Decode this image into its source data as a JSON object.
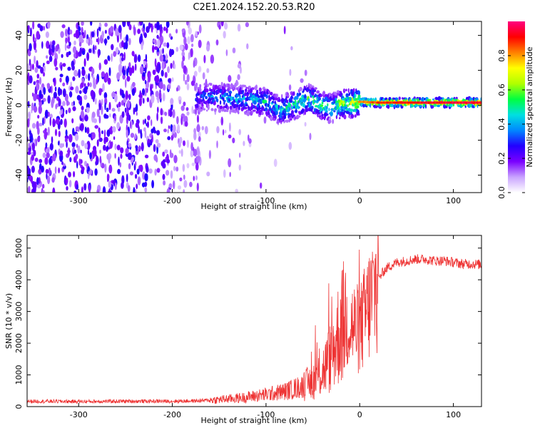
{
  "title": "C2E1.2024.152.20.53.R20",
  "chart_data": [
    {
      "type": "heatmap",
      "xlabel": "Height of straight line (km)",
      "ylabel": "Frequency (Hz)",
      "xlim": [
        -355,
        130
      ],
      "ylim": [
        -50,
        48
      ],
      "xticks": [
        -300,
        -200,
        -100,
        0,
        100
      ],
      "xtick_labels": [
        "-300",
        "-200",
        "-100",
        "0",
        "100"
      ],
      "yticks": [
        -40,
        -20,
        0,
        20,
        40
      ],
      "ytick_labels": [
        "-40",
        "-20",
        "0",
        "20",
        "40"
      ],
      "colorbar": {
        "label": "Normalized spectral amplitude",
        "range": [
          0,
          1
        ],
        "ticks": [
          0.0,
          0.2,
          0.4,
          0.6,
          0.8
        ],
        "tick_labels": [
          "0.0",
          "0.2",
          "0.4",
          "0.6",
          "0.8"
        ],
        "colors": [
          "#ffffff",
          "#c9a3ff",
          "#7a00ff",
          "#2200ff",
          "#0088ff",
          "#00e0e0",
          "#00ff40",
          "#b0ff00",
          "#ffff00",
          "#ff8000",
          "#ff0000",
          "#ff0080"
        ]
      },
      "signal_track": [
        {
          "x": -175,
          "freq": 4,
          "amp": 0.35
        },
        {
          "x": -160,
          "freq": 5,
          "amp": 0.4
        },
        {
          "x": -140,
          "freq": 4,
          "amp": 0.45
        },
        {
          "x": -120,
          "freq": 3,
          "amp": 0.45
        },
        {
          "x": -100,
          "freq": 2,
          "amp": 0.5
        },
        {
          "x": -85,
          "freq": -3,
          "amp": 0.5
        },
        {
          "x": -70,
          "freq": 0,
          "amp": 0.55
        },
        {
          "x": -55,
          "freq": 4,
          "amp": 0.6
        },
        {
          "x": -40,
          "freq": 0,
          "amp": 0.6
        },
        {
          "x": -30,
          "freq": -2,
          "amp": 0.55
        },
        {
          "x": -20,
          "freq": 1,
          "amp": 0.7
        },
        {
          "x": -10,
          "freq": 1,
          "amp": 0.75
        },
        {
          "x": 0,
          "freq": 2,
          "amp": 0.85
        },
        {
          "x": 20,
          "freq": 1.5,
          "amp": 0.9
        },
        {
          "x": 50,
          "freq": 1.5,
          "amp": 0.95
        },
        {
          "x": 80,
          "freq": 1.5,
          "amp": 0.97
        },
        {
          "x": 110,
          "freq": 1.5,
          "amp": 0.98
        },
        {
          "x": 130,
          "freq": 1.5,
          "amp": 0.98
        }
      ]
    },
    {
      "type": "line",
      "xlabel": "Height of straight line (km)",
      "ylabel": "SNR (10 * v/v)",
      "xlim": [
        -355,
        130
      ],
      "ylim": [
        0,
        5400
      ],
      "xticks": [
        -300,
        -200,
        -100,
        0,
        100
      ],
      "xtick_labels": [
        "-300",
        "-200",
        "-100",
        "0",
        "100"
      ],
      "yticks": [
        0,
        1000,
        2000,
        3000,
        4000,
        5000
      ],
      "ytick_labels": [
        "0",
        "1000",
        "2000",
        "3000",
        "4000",
        "5000"
      ],
      "line_color": "#ee3333",
      "series": [
        {
          "name": "SNR",
          "x": [
            -355,
            -300,
            -250,
            -200,
            -175,
            -150,
            -125,
            -100,
            -80,
            -60,
            -50,
            -40,
            -30,
            -25,
            -20,
            -15,
            -10,
            -5,
            0,
            5,
            10,
            15,
            20,
            25,
            30,
            40,
            50,
            60,
            70,
            80,
            90,
            100,
            110,
            120,
            130
          ],
          "values": [
            170,
            160,
            170,
            170,
            180,
            220,
            280,
            380,
            480,
            650,
            800,
            1100,
            1600,
            2100,
            2500,
            2800,
            2600,
            2500,
            2400,
            2800,
            3200,
            3600,
            4000,
            4250,
            4400,
            4550,
            4600,
            4650,
            4650,
            4600,
            4600,
            4550,
            4500,
            4500,
            4480
          ]
        }
      ]
    }
  ]
}
